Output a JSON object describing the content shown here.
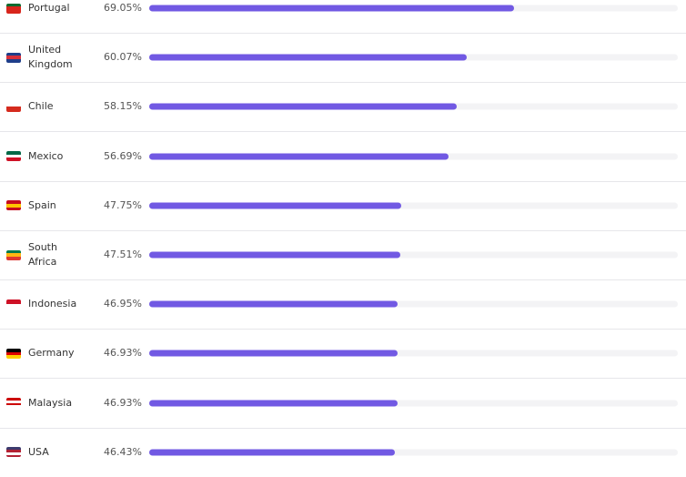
{
  "chart_data": {
    "type": "bar",
    "categories": [
      "Portugal",
      "United Kingdom",
      "Chile",
      "Mexico",
      "Spain",
      "South Africa",
      "Indonesia",
      "Germany",
      "Malaysia",
      "USA"
    ],
    "values": [
      69.05,
      60.07,
      58.15,
      56.69,
      47.75,
      47.51,
      46.95,
      46.93,
      46.93,
      46.43
    ],
    "value_labels": [
      "69.05%",
      "60.07%",
      "58.15%",
      "56.69%",
      "47.75%",
      "47.51%",
      "46.95%",
      "46.93%",
      "46.93%",
      "46.43%"
    ],
    "color": "#7159e3",
    "xlim": [
      0,
      100
    ]
  }
}
